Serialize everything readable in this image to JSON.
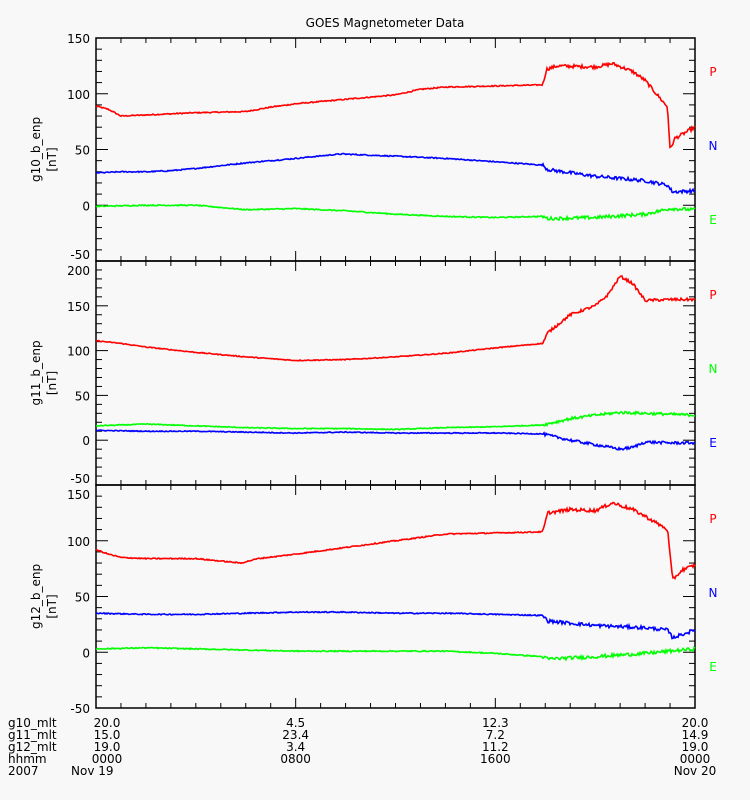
{
  "chart_data": {
    "type": "line",
    "title": "GOES Magnetometer Data",
    "x_unit": "hours since 2007 Nov 19 0000",
    "xlim": [
      0,
      24
    ],
    "grid": false,
    "panels": [
      {
        "ylabel": "g10_b_enp",
        "yunit": "[nT]",
        "ylim": [
          -50,
          150
        ],
        "yticks": [
          "150",
          "100",
          "50",
          "0",
          "-50"
        ],
        "ytick_values": [
          150,
          100,
          50,
          0,
          -50
        ],
        "series": [
          {
            "name": "P",
            "color": "#ff0000",
            "x": [
              0,
              0.5,
              1,
              2,
              4,
              6,
              7,
              8,
              10,
              12,
              13,
              14,
              16,
              17.9,
              18.05,
              18.5,
              20,
              20.7,
              21.5,
              22,
              22.9,
              23.0,
              23.2,
              23.6,
              24
            ],
            "y": [
              89,
              86,
              80,
              81,
              83,
              84,
              88,
              91,
              95,
              99,
              104,
              106,
              107,
              108,
              122,
              125,
              124,
              127,
              120,
              112,
              88,
              50,
              60,
              65,
              70
            ]
          },
          {
            "name": "N",
            "color": "#0000ff",
            "x": [
              0,
              1,
              2,
              3,
              4,
              6,
              8,
              9.8,
              12,
              14,
              16,
              17.9,
              18.1,
              20,
              22,
              22.9,
              23.1,
              24
            ],
            "y": [
              29,
              30,
              30,
              31,
              33,
              38,
              42,
              46,
              44,
              42,
              39,
              36,
              32,
              26,
              22,
              18,
              12,
              13
            ]
          },
          {
            "name": "E",
            "color": "#00ff00",
            "x": [
              0,
              2,
              4,
              5,
              6,
              8,
              10,
              12,
              14,
              16,
              17.9,
              18.1,
              20,
              22,
              23,
              24
            ],
            "y": [
              -1,
              0,
              0,
              -2,
              -4,
              -3,
              -5,
              -8,
              -10,
              -11,
              -10,
              -12,
              -11,
              -8,
              -3,
              -4
            ]
          }
        ],
        "legend": [
          "P",
          "N",
          "E"
        ]
      },
      {
        "ylabel": "g11_b_enp",
        "yunit": "[nT]",
        "ylim": [
          -50,
          200
        ],
        "yticks": [
          "200",
          "150",
          "100",
          "50",
          "0",
          "-50"
        ],
        "ytick_values": [
          200,
          150,
          100,
          50,
          0,
          -50
        ],
        "series": [
          {
            "name": "P",
            "color": "#ff0000",
            "x": [
              0,
              1,
              2,
              4,
              6,
              8,
              10,
              12,
              14,
              16,
              17.9,
              18.1,
              19,
              20,
              20.5,
              21,
              21.5,
              22,
              23,
              24
            ],
            "y": [
              111,
              108,
              104,
              98,
              93,
              89,
              90,
              93,
              97,
              103,
              108,
              120,
              140,
              150,
              162,
              183,
              175,
              156,
              157,
              157
            ]
          },
          {
            "name": "N",
            "color": "#00ff00",
            "x": [
              0,
              2,
              4,
              6,
              8,
              10,
              12,
              14,
              16,
              17.9,
              19,
              20,
              21,
              22,
              23,
              24
            ],
            "y": [
              16,
              18,
              16,
              14,
              13,
              13,
              12,
              14,
              15,
              17,
              24,
              28,
              31,
              30,
              29,
              28
            ]
          },
          {
            "name": "E",
            "color": "#0000ff",
            "x": [
              0,
              2,
              4,
              6,
              8,
              10,
              12,
              14,
              16,
              17.9,
              19,
              20,
              21,
              21.5,
              22,
              23,
              24
            ],
            "y": [
              11,
              10,
              10,
              9,
              8,
              9,
              8,
              8,
              8,
              7,
              0,
              -5,
              -10,
              -8,
              -2,
              -3,
              -3
            ]
          }
        ],
        "legend": [
          "P",
          "N",
          "E"
        ]
      },
      {
        "ylabel": "g12_b_enp",
        "yunit": "[nT]",
        "ylim": [
          -50,
          150
        ],
        "yticks": [
          "150",
          "100",
          "50",
          "0",
          "-50"
        ],
        "ytick_values": [
          150,
          100,
          50,
          0,
          -50
        ],
        "series": [
          {
            "name": "P",
            "color": "#ff0000",
            "x": [
              0,
              0.5,
              1,
              2,
              3,
              4,
              5.8,
              6.5,
              8,
              10,
              12,
              14,
              16,
              17.9,
              18.1,
              19,
              20,
              20.7,
              21.5,
              22,
              22.9,
              23.1,
              23.5,
              24
            ],
            "y": [
              92,
              88,
              85,
              84,
              84,
              84,
              80,
              84,
              88,
              94,
              100,
              106,
              107,
              108,
              125,
              128,
              127,
              134,
              128,
              122,
              110,
              65,
              74,
              78
            ]
          },
          {
            "name": "N",
            "color": "#0000ff",
            "x": [
              0,
              2,
              4,
              6,
              8,
              10,
              12,
              14,
              16,
              17.9,
              18.1,
              20,
              22,
              22.9,
              23.1,
              24
            ],
            "y": [
              35,
              34,
              34,
              35,
              36,
              36,
              35,
              35,
              34,
              33,
              28,
              24,
              22,
              20,
              13,
              20
            ]
          },
          {
            "name": "E",
            "color": "#00ff00",
            "x": [
              0,
              2,
              4,
              6,
              8,
              10,
              12,
              14,
              16,
              17.9,
              18.1,
              20,
              22,
              23,
              24
            ],
            "y": [
              3,
              4,
              3,
              2,
              1,
              1,
              1,
              1,
              -1,
              -4,
              -6,
              -4,
              -1,
              1,
              3
            ]
          }
        ],
        "legend": [
          "P",
          "N",
          "E"
        ]
      }
    ],
    "x_annotations": {
      "row_labels": [
        "g10_mlt",
        "g11_mlt",
        "g12_mlt",
        "hhmm",
        "2007"
      ],
      "tick_hours": [
        0,
        8,
        16,
        24
      ],
      "columns": [
        [
          "20.0",
          "15.0",
          "19.0",
          "0000",
          "Nov 19"
        ],
        [
          "4.5",
          "23.4",
          "3.4",
          "0800",
          ""
        ],
        [
          "12.3",
          "7.2",
          "11.2",
          "1600",
          ""
        ],
        [
          "20.0",
          "14.9",
          "19.0",
          "0000",
          "Nov 20"
        ]
      ]
    }
  }
}
